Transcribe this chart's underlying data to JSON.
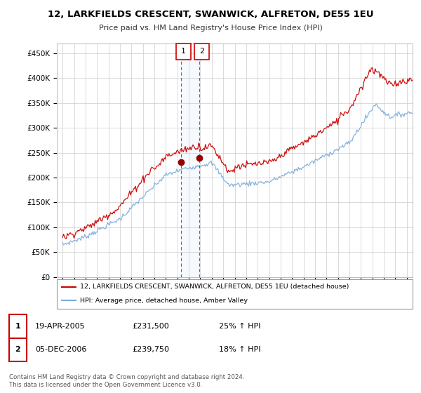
{
  "title": "12, LARKFIELDS CRESCENT, SWANWICK, ALFRETON, DE55 1EU",
  "subtitle": "Price paid vs. HM Land Registry's House Price Index (HPI)",
  "legend_line1": "12, LARKFIELDS CRESCENT, SWANWICK, ALFRETON, DE55 1EU (detached house)",
  "legend_line2": "HPI: Average price, detached house, Amber Valley",
  "footnote": "Contains HM Land Registry data © Crown copyright and database right 2024.\nThis data is licensed under the Open Government Licence v3.0.",
  "sale1_date": "19-APR-2005",
  "sale1_price": "£231,500",
  "sale1_hpi": "25% ↑ HPI",
  "sale2_date": "05-DEC-2006",
  "sale2_price": "£239,750",
  "sale2_hpi": "18% ↑ HPI",
  "sale1_x": 2005.3,
  "sale2_x": 2006.92,
  "sale1_y": 231500,
  "sale2_y": 239750,
  "red_color": "#cc0000",
  "blue_color": "#7aabdc",
  "marker_color": "#990000",
  "background_color": "#ffffff",
  "grid_color": "#cccccc",
  "ylim": [
    0,
    470000
  ],
  "xlim": [
    1994.5,
    2025.5
  ],
  "yticks": [
    0,
    50000,
    100000,
    150000,
    200000,
    250000,
    300000,
    350000,
    400000,
    450000
  ],
  "xticks": [
    1995,
    1996,
    1997,
    1998,
    1999,
    2000,
    2001,
    2002,
    2003,
    2004,
    2005,
    2006,
    2007,
    2008,
    2009,
    2010,
    2011,
    2012,
    2013,
    2014,
    2015,
    2016,
    2017,
    2018,
    2019,
    2020,
    2021,
    2022,
    2023,
    2024,
    2025
  ]
}
